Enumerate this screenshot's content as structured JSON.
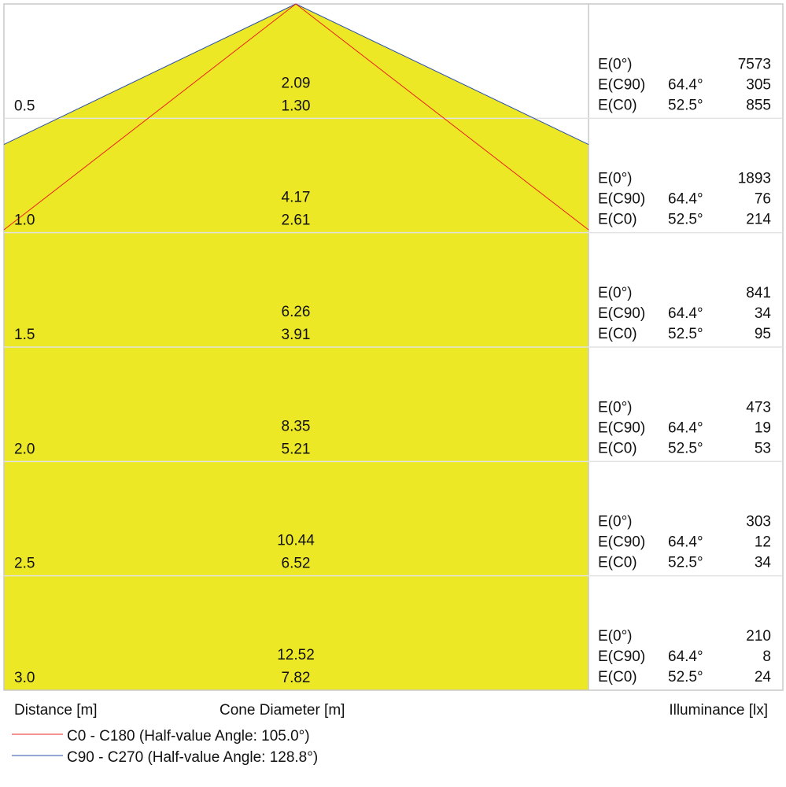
{
  "chart_data": {
    "type": "cone-diagram",
    "colors": {
      "fill": "#ede826",
      "c0": "#e8201c",
      "c90": "#2b4fa8",
      "grid": "#c8c8c8"
    },
    "rows": [
      {
        "distance": "0.5",
        "d_c90": "2.09",
        "d_c0": "1.30",
        "e0": "7573",
        "ec90": "305",
        "ec0": "855"
      },
      {
        "distance": "1.0",
        "d_c90": "4.17",
        "d_c0": "2.61",
        "e0": "1893",
        "ec90": "76",
        "ec0": "214"
      },
      {
        "distance": "1.5",
        "d_c90": "6.26",
        "d_c0": "3.91",
        "e0": "841",
        "ec90": "34",
        "ec0": "95"
      },
      {
        "distance": "2.0",
        "d_c90": "8.35",
        "d_c0": "5.21",
        "e0": "473",
        "ec90": "19",
        "ec0": "53"
      },
      {
        "distance": "2.5",
        "d_c90": "10.44",
        "d_c0": "6.52",
        "e0": "303",
        "ec90": "12",
        "ec0": "34"
      },
      {
        "distance": "3.0",
        "d_c90": "12.52",
        "d_c0": "7.82",
        "e0": "210",
        "ec90": "8",
        "ec0": "24"
      }
    ],
    "row_labels": {
      "e0": "E(0°)",
      "ec90": "E(C90)",
      "ec0": "E(C0)",
      "angle_c90": "64.4°",
      "angle_c0": "52.5°"
    },
    "axis_labels": {
      "distance": "Distance [m]",
      "diameter": "Cone Diameter [m]",
      "illuminance": "Illuminance [lx]"
    },
    "legend": [
      {
        "label": "C0 - C180 (Half-value Angle: 105.0°)",
        "series": "c0"
      },
      {
        "label": "C90 - C270 (Half-value Angle: 128.8°)",
        "series": "c90"
      }
    ]
  }
}
